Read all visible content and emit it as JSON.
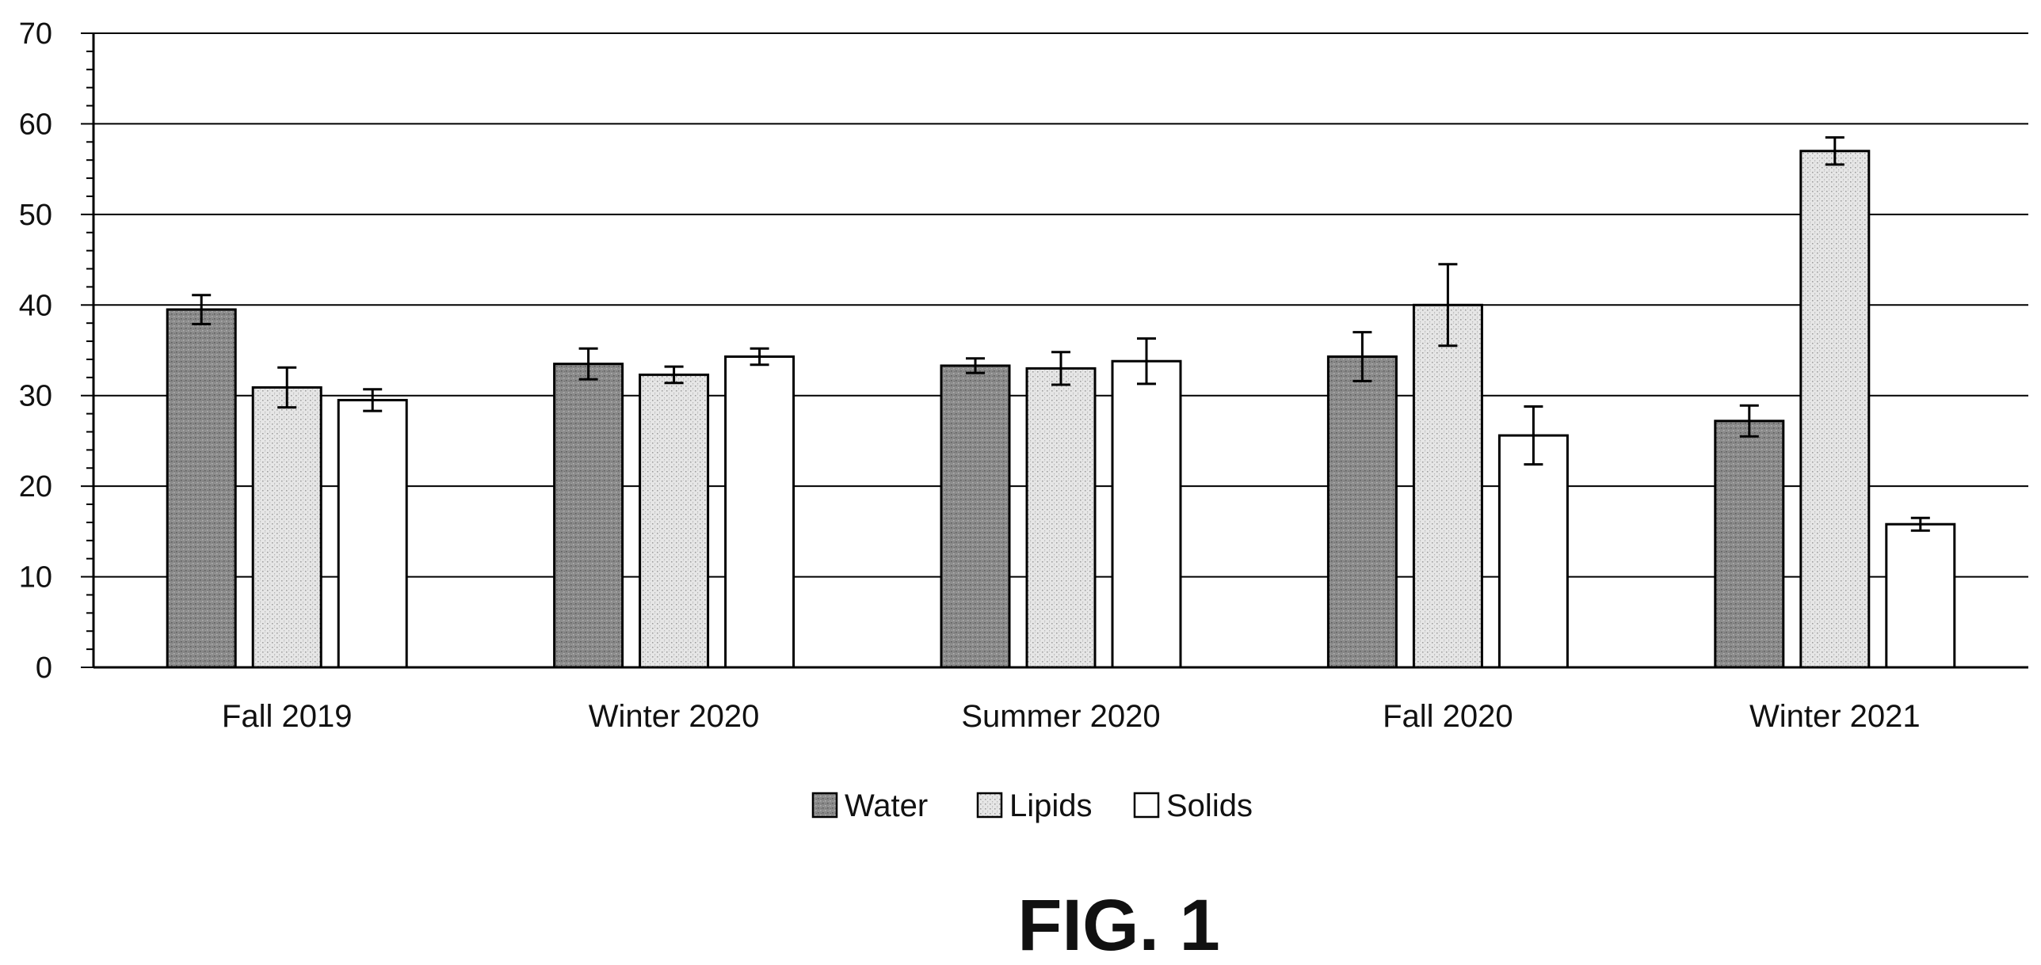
{
  "figure": {
    "caption": "FIG. 1"
  },
  "chart_data": {
    "type": "bar",
    "title": "",
    "xlabel": "",
    "ylabel": "",
    "ylim": [
      0,
      70
    ],
    "yticks": [
      0,
      10,
      20,
      30,
      40,
      50,
      60,
      70
    ],
    "grid": true,
    "legend_position": "bottom-center",
    "categories": [
      "Fall 2019",
      "Winter 2020",
      "Summer 2020",
      "Fall 2020",
      "Winter 2021"
    ],
    "series": [
      {
        "name": "Water",
        "pattern": "dark-stipple",
        "color": "#8f8f8f",
        "values": [
          39.5,
          33.5,
          33.3,
          34.3,
          27.2
        ],
        "errors": [
          1.6,
          1.7,
          0.8,
          2.7,
          1.7
        ]
      },
      {
        "name": "Lipids",
        "pattern": "light-stipple",
        "color": "#dcdcdc",
        "values": [
          30.9,
          32.3,
          33.0,
          40.0,
          57.0
        ],
        "errors": [
          2.2,
          0.9,
          1.8,
          4.5,
          1.5
        ]
      },
      {
        "name": "Solids",
        "pattern": "none",
        "color": "#ffffff",
        "values": [
          29.5,
          34.3,
          33.8,
          25.6,
          15.8
        ],
        "errors": [
          1.2,
          0.9,
          2.5,
          3.2,
          0.7
        ]
      }
    ]
  }
}
